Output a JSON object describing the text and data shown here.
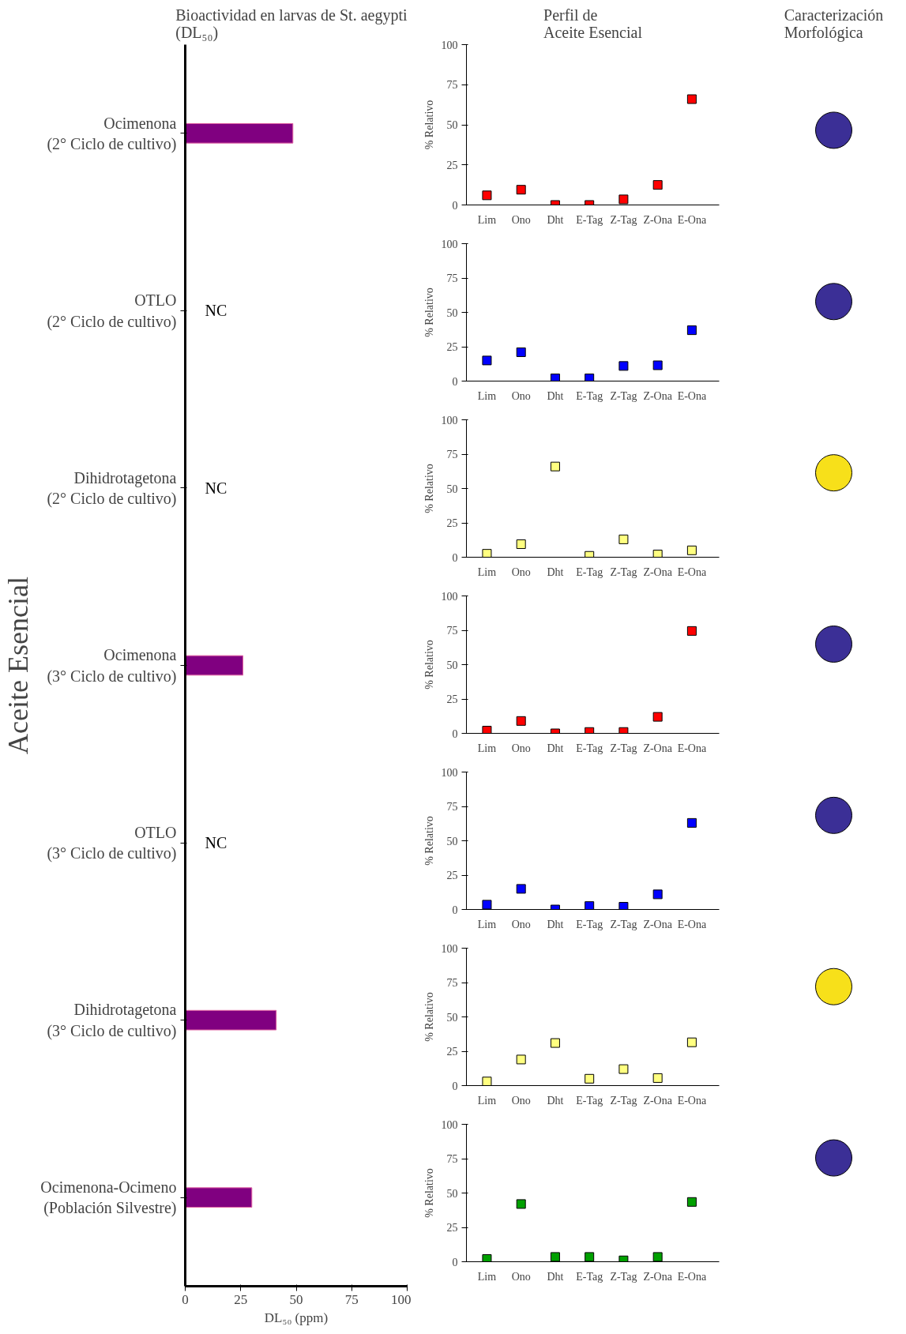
{
  "chart_data": [
    {
      "type": "bar",
      "orientation": "horizontal",
      "title": "Bioactividad en larvas de St. aegypti\n(DL₅₀)",
      "xlabel": "DL₅₀ (ppm)",
      "ylabel": "Aceite Esencial",
      "categories": [
        "Ocimenona\n(2° Ciclo de cultivo)",
        "OTLO\n(2° Ciclo de cultivo)",
        "Dihidrotagetona\n(2° Ciclo de cultivo)",
        "Ocimenona\n(3° Ciclo de cultivo)",
        "OTLO\n(3° Ciclo de cultivo)",
        "Dihidrotagetona\n(3° Ciclo de cultivo)",
        "Ocimenona-Ocimeno\n(Población Silvestre)"
      ],
      "values": [
        48.5,
        null,
        null,
        26,
        null,
        41,
        30
      ],
      "value_labels": [
        null,
        "NC",
        "NC",
        null,
        "NC",
        null,
        null
      ],
      "color": "#800080",
      "xlim": [
        0,
        100
      ],
      "xticks": [
        0,
        25,
        50,
        75,
        100
      ]
    },
    {
      "type": "scatter",
      "title": "Perfil de\nAceite Esencial",
      "ylabel": "% Relativo",
      "categories": [
        "Lim",
        "Ono",
        "Dht",
        "E-Tag",
        "Z-Tag",
        "Z-Ona",
        "E-Ona"
      ],
      "values": [
        6,
        9.5,
        0,
        0,
        3.5,
        12.5,
        66
      ],
      "color": "#ff0000",
      "marker": "square",
      "ylim": [
        0,
        100
      ],
      "yticks": [
        0,
        25,
        50,
        75,
        100
      ]
    },
    {
      "type": "scatter",
      "ylabel": "% Relativo",
      "categories": [
        "Lim",
        "Ono",
        "Dht",
        "E-Tag",
        "Z-Tag",
        "Z-Ona",
        "E-Ona"
      ],
      "values": [
        15,
        21,
        2,
        2,
        11,
        11.5,
        37
      ],
      "color": "#0000ff",
      "marker": "square",
      "ylim": [
        0,
        100
      ],
      "yticks": [
        0,
        25,
        50,
        75,
        100
      ]
    },
    {
      "type": "scatter",
      "ylabel": "% Relativo",
      "categories": [
        "Lim",
        "Ono",
        "Dht",
        "E-Tag",
        "Z-Tag",
        "Z-Ona",
        "E-Ona"
      ],
      "values": [
        2.5,
        9.5,
        66,
        1,
        13,
        2,
        5
      ],
      "color": "#ffff80",
      "marker": "square",
      "ylim": [
        0,
        100
      ],
      "yticks": [
        0,
        25,
        50,
        75,
        100
      ]
    },
    {
      "type": "scatter",
      "ylabel": "% Relativo",
      "categories": [
        "Lim",
        "Ono",
        "Dht",
        "E-Tag",
        "Z-Tag",
        "Z-Ona",
        "E-Ona"
      ],
      "values": [
        2,
        9,
        0,
        1,
        1,
        12,
        74.5
      ],
      "color": "#ff0000",
      "marker": "square",
      "ylim": [
        0,
        100
      ],
      "yticks": [
        0,
        25,
        50,
        75,
        100
      ]
    },
    {
      "type": "scatter",
      "ylabel": "% Relativo",
      "categories": [
        "Lim",
        "Ono",
        "Dht",
        "E-Tag",
        "Z-Tag",
        "Z-Ona",
        "E-Ona"
      ],
      "values": [
        3.5,
        15,
        0,
        2.5,
        2,
        11,
        63
      ],
      "color": "#0000ff",
      "marker": "square",
      "ylim": [
        0,
        100
      ],
      "yticks": [
        0,
        25,
        50,
        75,
        100
      ]
    },
    {
      "type": "scatter",
      "ylabel": "% Relativo",
      "categories": [
        "Lim",
        "Ono",
        "Dht",
        "E-Tag",
        "Z-Tag",
        "Z-Ona",
        "E-Ona"
      ],
      "values": [
        3,
        19,
        31,
        5,
        12,
        5.5,
        31.5
      ],
      "color": "#ffff80",
      "marker": "square",
      "ylim": [
        0,
        100
      ],
      "yticks": [
        0,
        25,
        50,
        75,
        100
      ]
    },
    {
      "type": "scatter",
      "ylabel": "% Relativo",
      "categories": [
        "Lim",
        "Ono",
        "Dht",
        "E-Tag",
        "Z-Tag",
        "Z-Ona",
        "E-Ona"
      ],
      "values": [
        2,
        42,
        3.5,
        3.5,
        1,
        3.5,
        43.5
      ],
      "color": "#00a000",
      "marker": "square",
      "ylim": [
        0,
        100
      ],
      "yticks": [
        0,
        25,
        50,
        75,
        100
      ]
    },
    {
      "type": "other",
      "title": "Caracterización\nMorfológica",
      "colors": [
        "#3b2f96",
        "#3b2f96",
        "#f7e01a",
        "#3b2f96",
        "#3b2f96",
        "#f7e01a",
        "#3b2f96"
      ]
    }
  ]
}
